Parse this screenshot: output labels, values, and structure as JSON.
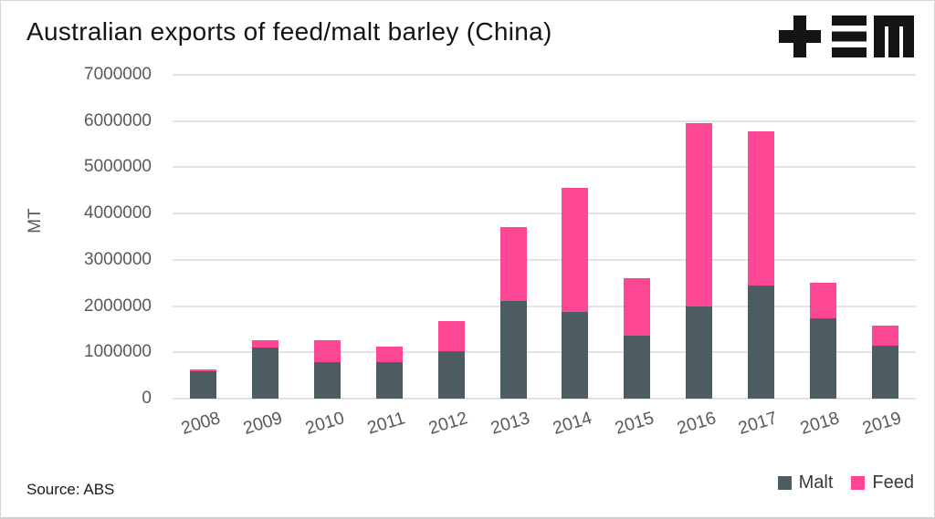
{
  "header": {
    "title": "Australian exports of feed/malt barley (China)",
    "logo_name": "tem-logo"
  },
  "footer": {
    "source": "Source: ABS"
  },
  "chart_data": {
    "type": "bar",
    "stacked": true,
    "title": "Australian exports of feed/malt barley (China)",
    "xlabel": "",
    "ylabel": "MT",
    "ylim": [
      0,
      7000000
    ],
    "yticks": [
      0,
      1000000,
      2000000,
      3000000,
      4000000,
      5000000,
      6000000,
      7000000
    ],
    "grid": true,
    "legend_position": "bottom-right",
    "categories": [
      "2008",
      "2009",
      "2010",
      "2011",
      "2012",
      "2013",
      "2014",
      "2015",
      "2016",
      "2017",
      "2018",
      "2019"
    ],
    "series": [
      {
        "name": "Malt",
        "color": "#4d5c60",
        "values": [
          590000,
          1110000,
          780000,
          780000,
          1020000,
          2120000,
          1870000,
          1360000,
          1990000,
          2440000,
          1730000,
          1140000
        ]
      },
      {
        "name": "Feed",
        "color": "#fd4795",
        "values": [
          40000,
          160000,
          480000,
          350000,
          660000,
          1580000,
          2690000,
          1250000,
          3960000,
          3330000,
          770000,
          440000
        ]
      }
    ],
    "totals": [
      630000,
      1270000,
      1260000,
      1130000,
      1680000,
      3700000,
      4560000,
      2610000,
      5950000,
      5770000,
      2500000,
      1580000
    ]
  },
  "colors": {
    "malt": "#4d5c60",
    "feed": "#fd4795",
    "gridline": "#e3e3e3",
    "axis_text": "#595959",
    "logo": "#141414"
  }
}
